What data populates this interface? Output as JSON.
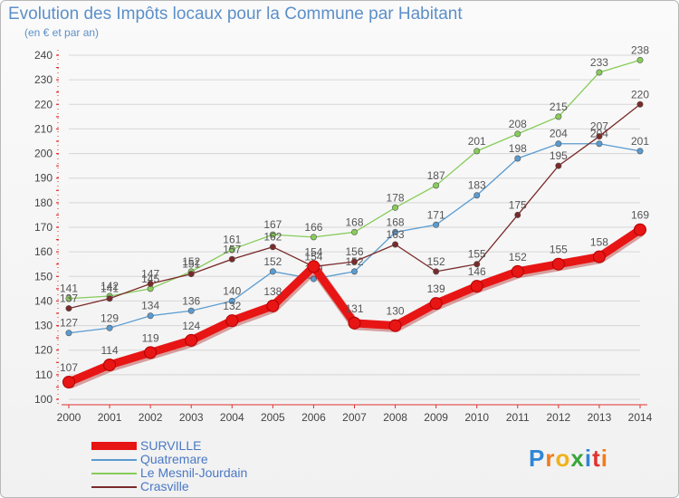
{
  "title": "Evolution des Impôts locaux pour la Commune par Habitant",
  "subtitle": "(en € et par an)",
  "logo": {
    "text": "Proxiti",
    "letters": [
      "P",
      "r",
      "o",
      "x",
      "i",
      "t",
      "i"
    ],
    "colors": [
      "#2f86d4",
      "#f07d1a",
      "#f0b21a",
      "#3aa53a",
      "#2f86d4",
      "#e0332f",
      "#f07d1a"
    ]
  },
  "chart_data": {
    "type": "line",
    "title": "Evolution des Impôts locaux pour la Commune par Habitant",
    "subtitle": "(en € et par an)",
    "x": [
      2000,
      2001,
      2002,
      2003,
      2004,
      2005,
      2006,
      2007,
      2008,
      2009,
      2010,
      2011,
      2012,
      2013,
      2014
    ],
    "x_tick_labels": [
      "2000",
      "2001",
      "2002",
      "2003",
      "2004",
      "2005",
      "2006",
      "2007",
      "2008",
      "2009",
      "2010",
      "2011",
      "2012",
      "2013",
      "2014"
    ],
    "ylim": [
      100,
      240
    ],
    "y_ticks": [
      100,
      110,
      120,
      130,
      140,
      150,
      160,
      170,
      180,
      190,
      200,
      210,
      220,
      230,
      240
    ],
    "grid": "horizontal",
    "legend_position": "bottom-left",
    "series": [
      {
        "name": "Le Mesnil-Jourdain",
        "color": "#88cc5a",
        "emphasis": false,
        "values": [
          141,
          142,
          145,
          152,
          161,
          167,
          166,
          168,
          178,
          187,
          201,
          208,
          215,
          233,
          238
        ]
      },
      {
        "name": "Quatremare",
        "color": "#5a9bd0",
        "emphasis": false,
        "values": [
          127,
          129,
          134,
          136,
          140,
          152,
          149,
          152,
          168,
          171,
          183,
          198,
          204,
          204,
          201
        ]
      },
      {
        "name": "Crasville",
        "color": "#7a2a2a",
        "emphasis": false,
        "values": [
          137,
          141,
          147,
          151,
          157,
          162,
          154,
          156,
          163,
          152,
          155,
          175,
          195,
          207,
          220
        ]
      },
      {
        "name": "SURVILLE",
        "color": "#e81515",
        "emphasis": true,
        "values": [
          107,
          114,
          119,
          124,
          132,
          138,
          154,
          131,
          130,
          139,
          146,
          152,
          155,
          158,
          169
        ]
      }
    ],
    "legend_order": [
      "SURVILLE",
      "Quatremare",
      "Le Mesnil-Jourdain",
      "Crasville"
    ]
  }
}
